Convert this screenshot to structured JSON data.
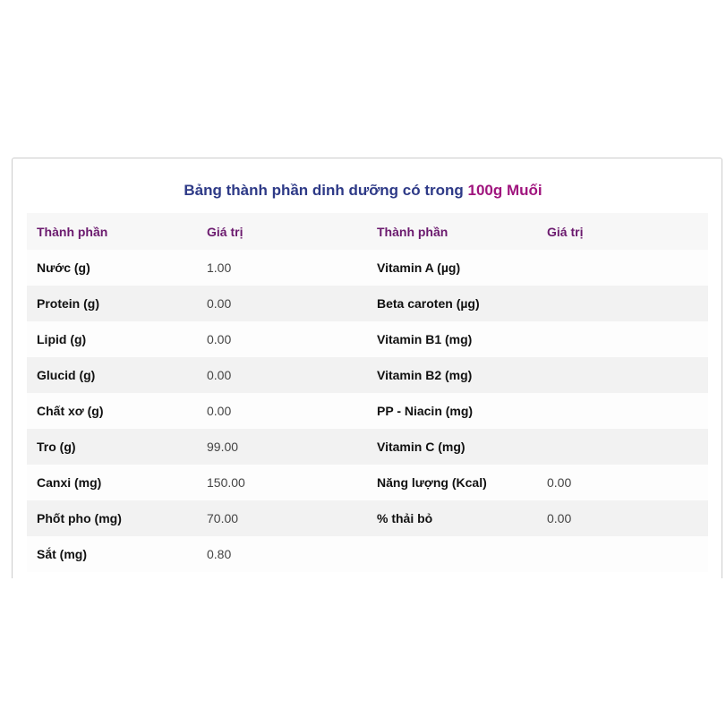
{
  "title": {
    "prefix": "Bảng thành phần dinh dưỡng có trong",
    "highlight": "100g Muối"
  },
  "headers": [
    "Thành phần",
    "Giá trị",
    "Thành phần",
    "Giá trị"
  ],
  "rows": [
    [
      "Nước (g)",
      "1.00",
      "Vitamin A (µg)",
      ""
    ],
    [
      "Protein (g)",
      "0.00",
      "Beta caroten (µg)",
      ""
    ],
    [
      "Lipid (g)",
      "0.00",
      "Vitamin B1 (mg)",
      ""
    ],
    [
      "Glucid (g)",
      "0.00",
      "Vitamin B2 (mg)",
      ""
    ],
    [
      "Chất xơ (g)",
      "0.00",
      "PP - Niacin (mg)",
      ""
    ],
    [
      "Tro (g)",
      "99.00",
      "Vitamin C (mg)",
      ""
    ],
    [
      "Canxi (mg)",
      "150.00",
      "Năng lượng (Kcal)",
      "0.00"
    ],
    [
      "Phốt pho (mg)",
      "70.00",
      "% thải bỏ",
      "0.00"
    ],
    [
      "Sắt (mg)",
      "0.80",
      "",
      ""
    ]
  ]
}
